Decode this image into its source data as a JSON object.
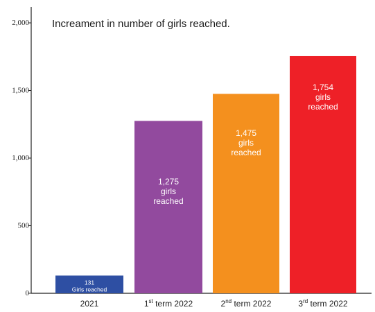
{
  "chart_data": {
    "type": "bar",
    "title": "Increament in number of girls reached.",
    "xlabel": "",
    "ylabel": "",
    "ylim": [
      0,
      2000
    ],
    "yticks": [
      0,
      500,
      1000,
      1500,
      2000
    ],
    "ytick_labels": [
      "0",
      "500",
      "1,000",
      "1,500",
      "2,000"
    ],
    "grid": false,
    "legend": "none",
    "categories": [
      {
        "main": "2021",
        "sup": "",
        "rest": ""
      },
      {
        "main": "1",
        "sup": "st",
        "rest": " term 2022"
      },
      {
        "main": "2",
        "sup": "nd",
        "rest": " term 2022"
      },
      {
        "main": "3",
        "sup": "rd",
        "rest": " term 2022"
      }
    ],
    "values": [
      131,
      1275,
      1475,
      1754
    ],
    "colors": [
      "#2e4fa3",
      "#924a9e",
      "#f4901e",
      "#ee2027"
    ],
    "data_labels": [
      [
        "131",
        "Girls reached"
      ],
      [
        "1,275",
        "girls",
        "reached"
      ],
      [
        "1,475",
        "girls",
        "reached"
      ],
      [
        "1,754",
        "girls",
        "reached"
      ]
    ]
  }
}
